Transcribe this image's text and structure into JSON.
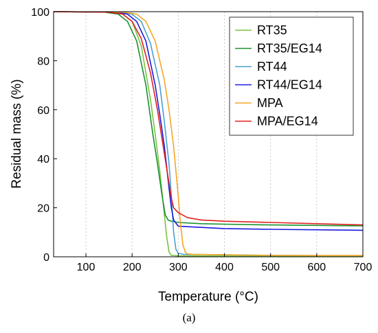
{
  "caption": "(a)",
  "chart_data": {
    "type": "line",
    "xlabel": "Temperature (°C)",
    "ylabel": "Residual mass (%)",
    "xlim": [
      30,
      700
    ],
    "ylim": [
      0,
      100
    ],
    "xticks": [
      100,
      200,
      300,
      400,
      500,
      600,
      700
    ],
    "yticks": [
      0,
      20,
      40,
      60,
      80,
      100
    ],
    "grid": "vertical dotted",
    "legend_position": "top-right",
    "series": [
      {
        "name": "RT35",
        "color": "#7ac142",
        "x": [
          30,
          150,
          180,
          200,
          220,
          240,
          250,
          260,
          270,
          275,
          280,
          285,
          290,
          300,
          400,
          500,
          600,
          700
        ],
        "y": [
          100,
          99.8,
          99,
          96,
          86,
          64,
          50,
          35,
          17,
          8,
          2,
          0.6,
          0.5,
          0.4,
          0.3,
          0.3,
          0.3,
          0.3
        ]
      },
      {
        "name": "RT35/EG14",
        "color": "#18912e",
        "x": [
          30,
          140,
          170,
          190,
          210,
          230,
          245,
          255,
          265,
          272,
          278,
          285,
          300,
          350,
          400,
          500,
          600,
          700
        ],
        "y": [
          100,
          99.8,
          99,
          96,
          88,
          70,
          50,
          38,
          25,
          17,
          15,
          14.5,
          14,
          13.5,
          13.3,
          13,
          12.8,
          12.6
        ]
      },
      {
        "name": "RT44",
        "color": "#48a0d0",
        "x": [
          30,
          170,
          200,
          220,
          240,
          260,
          270,
          280,
          285,
          290,
          295,
          300,
          310,
          400,
          500,
          600,
          700
        ],
        "y": [
          100,
          99.8,
          99,
          96,
          87,
          70,
          55,
          38,
          25,
          10,
          3,
          1.5,
          1,
          0.8,
          0.6,
          0.5,
          0.5
        ]
      },
      {
        "name": "RT44/EG14",
        "color": "#1a1adf",
        "x": [
          30,
          160,
          190,
          210,
          230,
          250,
          260,
          270,
          280,
          285,
          290,
          300,
          350,
          400,
          500,
          600,
          700
        ],
        "y": [
          100,
          99.8,
          99,
          96,
          88,
          70,
          58,
          45,
          28,
          20,
          15,
          12.5,
          12,
          11.5,
          11.2,
          11,
          10.8
        ]
      },
      {
        "name": "MPA",
        "color": "#f5a623",
        "x": [
          30,
          180,
          210,
          230,
          250,
          270,
          280,
          290,
          300,
          305,
          310,
          315,
          320,
          330,
          400,
          500,
          600,
          700
        ],
        "y": [
          100,
          99.8,
          99,
          96,
          88,
          72,
          60,
          45,
          25,
          13,
          5,
          2,
          1.2,
          1,
          0.8,
          0.6,
          0.5,
          0.5
        ]
      },
      {
        "name": "MPA/EG14",
        "color": "#e01f1f",
        "x": [
          30,
          150,
          180,
          200,
          220,
          240,
          255,
          265,
          275,
          280,
          285,
          290,
          300,
          320,
          350,
          400,
          500,
          600,
          700
        ],
        "y": [
          100,
          99.8,
          99,
          96,
          89,
          75,
          60,
          48,
          36,
          30,
          24,
          20,
          18,
          16,
          15,
          14.5,
          14,
          13.5,
          13
        ]
      }
    ]
  }
}
